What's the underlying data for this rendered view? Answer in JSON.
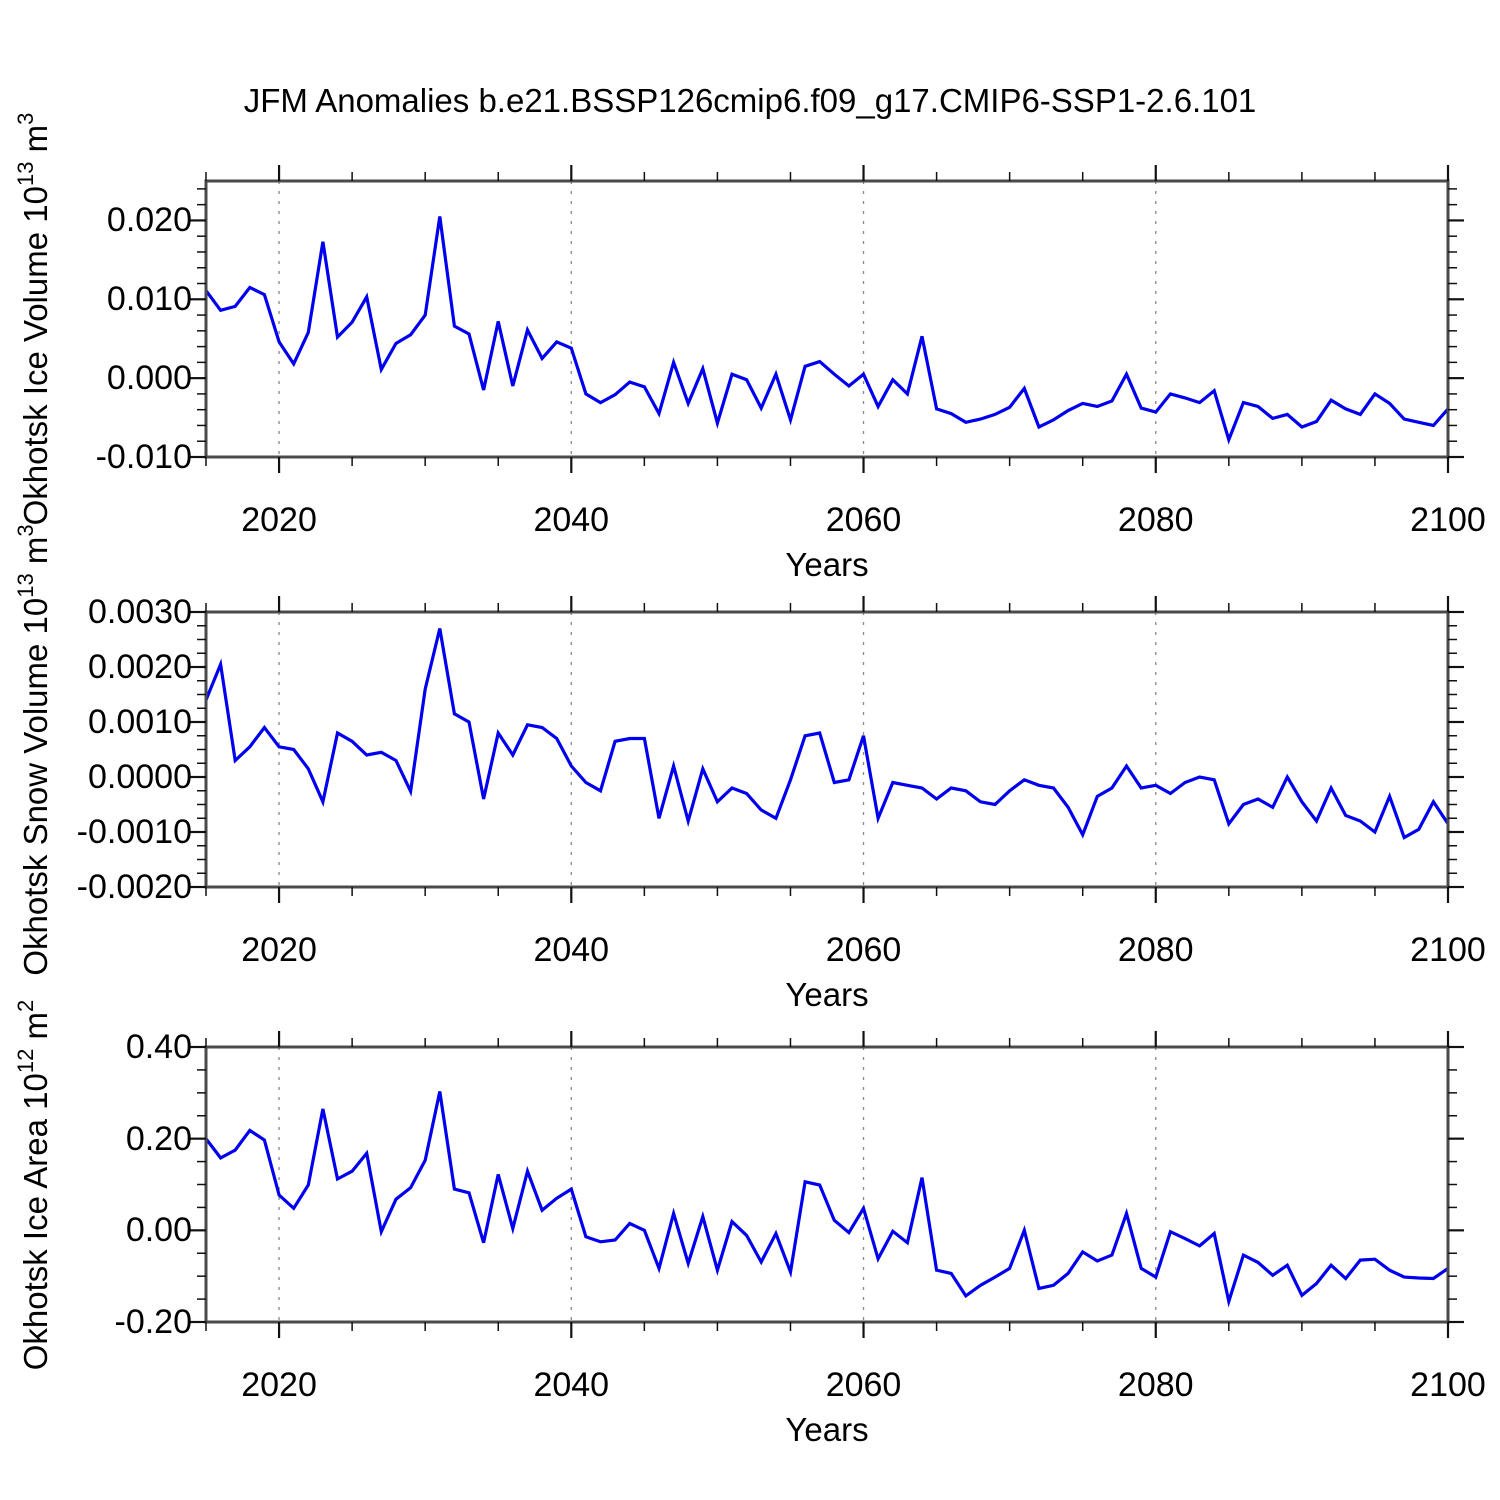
{
  "title": "JFM Anomalies b.e21.BSSP126cmip6.f09_g17.CMIP6-SSP1-2.6.101",
  "colors": {
    "line": "#0000ee",
    "axis_frame": "#4a4a4a",
    "ticks": "#111111",
    "gridline": "#888888",
    "text": "#000000",
    "background": "#ffffff"
  },
  "chart_data": [
    {
      "type": "line",
      "panel": "okhotsk-ice-volume",
      "ylabel": {
        "text": "Okhotsk Ice Volume",
        "base": "10",
        "exponent": "13",
        "unit": "m",
        "unit_exponent": "3"
      },
      "xlabel": "Years",
      "xlim": [
        2015,
        2100
      ],
      "ylim": [
        -0.01,
        0.025
      ],
      "xticks": {
        "values": [
          2020,
          2040,
          2060,
          2080,
          2100
        ],
        "labels": [
          "2020",
          "2040",
          "2060",
          "2080",
          "2100"
        ]
      },
      "yticks": {
        "values": [
          -0.01,
          0.0,
          0.01,
          0.02
        ],
        "labels": [
          "-0.010",
          "0.000",
          "0.010",
          "0.020"
        ]
      },
      "xminor_step": 5,
      "yminor_step": 0.002,
      "gridlines": [
        2020,
        2040,
        2060,
        2080
      ],
      "grid_style": "dashed-vertical",
      "legend": "none",
      "x_start": 2015,
      "x_step": 1,
      "values": [
        0.0111,
        0.0086,
        0.0091,
        0.0115,
        0.0106,
        0.0046,
        0.0018,
        0.0058,
        0.0173,
        0.0052,
        0.0071,
        0.0103,
        0.0011,
        0.0044,
        0.0055,
        0.008,
        0.0205,
        0.0066,
        0.0056,
        -0.0015,
        0.0072,
        -0.001,
        0.0061,
        0.0025,
        0.0046,
        0.0038,
        -0.002,
        -0.0031,
        -0.0021,
        -0.0005,
        -0.0011,
        -0.0045,
        0.002,
        -0.0032,
        0.0012,
        -0.0057,
        0.0005,
        -0.0002,
        -0.0038,
        0.0005,
        -0.0053,
        0.0015,
        0.0021,
        0.0005,
        -0.001,
        0.0005,
        -0.0036,
        -0.0002,
        -0.002,
        0.0053,
        -0.0039,
        -0.0045,
        -0.0056,
        -0.0052,
        -0.0046,
        -0.0037,
        -0.0013,
        -0.0062,
        -0.0053,
        -0.0041,
        -0.0032,
        -0.0036,
        -0.0029,
        0.0005,
        -0.0038,
        -0.0043,
        -0.002,
        -0.0025,
        -0.0031,
        -0.0016,
        -0.0078,
        -0.0031,
        -0.0036,
        -0.0051,
        -0.0046,
        -0.0062,
        -0.0055,
        -0.0028,
        -0.0039,
        -0.0046,
        -0.002,
        -0.0032,
        -0.0052,
        -0.0056,
        -0.006,
        -0.0039
      ]
    },
    {
      "type": "line",
      "panel": "okhotsk-snow-volume",
      "ylabel": {
        "text": "Okhotsk Snow Volume",
        "base": "10",
        "exponent": "13",
        "unit": "m",
        "unit_exponent": "3"
      },
      "xlabel": "Years",
      "xlim": [
        2015,
        2100
      ],
      "ylim": [
        -0.002,
        0.003
      ],
      "xticks": {
        "values": [
          2020,
          2040,
          2060,
          2080,
          2100
        ],
        "labels": [
          "2020",
          "2040",
          "2060",
          "2080",
          "2100"
        ]
      },
      "yticks": {
        "values": [
          -0.002,
          -0.001,
          0.0,
          0.001,
          0.002,
          0.003
        ],
        "labels": [
          "-0.0020",
          "-0.0010",
          "0.0000",
          "0.0010",
          "0.0020",
          "0.0030"
        ]
      },
      "xminor_step": 5,
      "yminor_step": 0.00025,
      "gridlines": [
        2020,
        2040,
        2060,
        2080
      ],
      "grid_style": "dashed-vertical",
      "legend": "none",
      "x_start": 2015,
      "x_step": 1,
      "values": [
        0.0014,
        0.00205,
        0.0003,
        0.00055,
        0.0009,
        0.00055,
        0.0005,
        0.00015,
        -0.00045,
        0.0008,
        0.00065,
        0.0004,
        0.00045,
        0.0003,
        -0.00026,
        0.0016,
        0.0027,
        0.00115,
        0.001,
        -0.0004,
        0.0008,
        0.0004,
        0.00095,
        0.0009,
        0.0007,
        0.0002,
        -0.0001,
        -0.00025,
        0.00065,
        0.0007,
        0.0007,
        -0.00075,
        0.0002,
        -0.0008,
        0.00015,
        -0.00045,
        -0.0002,
        -0.0003,
        -0.0006,
        -0.00075,
        -5e-05,
        0.00075,
        0.0008,
        -0.0001,
        -5e-05,
        0.00075,
        -0.00075,
        -0.0001,
        -0.00015,
        -0.0002,
        -0.0004,
        -0.0002,
        -0.00025,
        -0.00045,
        -0.0005,
        -0.00025,
        -5e-05,
        -0.00015,
        -0.0002,
        -0.00055,
        -0.00105,
        -0.00035,
        -0.0002,
        0.0002,
        -0.0002,
        -0.00015,
        -0.0003,
        -0.0001,
        0.0,
        -5e-05,
        -0.00085,
        -0.0005,
        -0.0004,
        -0.00055,
        0.0,
        -0.00045,
        -0.0008,
        -0.0002,
        -0.0007,
        -0.0008,
        -0.001,
        -0.00035,
        -0.0011,
        -0.00095,
        -0.00045,
        -0.00085
      ]
    },
    {
      "type": "line",
      "panel": "okhotsk-ice-area",
      "ylabel": {
        "text": "Okhotsk Ice Area",
        "base": "10",
        "exponent": "12",
        "unit": "m",
        "unit_exponent": "2"
      },
      "xlabel": "Years",
      "xlim": [
        2015,
        2100
      ],
      "ylim": [
        -0.2,
        0.4
      ],
      "xticks": {
        "values": [
          2020,
          2040,
          2060,
          2080,
          2100
        ],
        "labels": [
          "2020",
          "2040",
          "2060",
          "2080",
          "2100"
        ]
      },
      "yticks": {
        "values": [
          -0.2,
          0.0,
          0.2,
          0.4
        ],
        "labels": [
          "-0.20",
          "0.00",
          "0.20",
          "0.40"
        ]
      },
      "xminor_step": 5,
      "yminor_step": 0.05,
      "gridlines": [
        2020,
        2040,
        2060,
        2080
      ],
      "grid_style": "dashed-vertical",
      "legend": "none",
      "x_start": 2015,
      "x_step": 1,
      "values": [
        0.2,
        0.158,
        0.175,
        0.218,
        0.197,
        0.077,
        0.048,
        0.099,
        0.265,
        0.112,
        0.129,
        0.168,
        -0.003,
        0.068,
        0.093,
        0.153,
        0.303,
        0.09,
        0.082,
        -0.027,
        0.122,
        0.004,
        0.129,
        0.044,
        0.07,
        0.09,
        -0.014,
        -0.025,
        -0.021,
        0.015,
        0.0,
        -0.083,
        0.037,
        -0.072,
        0.03,
        -0.087,
        0.019,
        -0.011,
        -0.069,
        -0.007,
        -0.091,
        0.106,
        0.099,
        0.022,
        -0.005,
        0.048,
        -0.062,
        -0.002,
        -0.027,
        0.115,
        -0.087,
        -0.094,
        -0.143,
        -0.12,
        -0.102,
        -0.083,
        0.0,
        -0.127,
        -0.12,
        -0.094,
        -0.047,
        -0.067,
        -0.054,
        0.037,
        -0.083,
        -0.102,
        -0.003,
        -0.018,
        -0.034,
        -0.007,
        -0.155,
        -0.054,
        -0.07,
        -0.098,
        -0.076,
        -0.142,
        -0.116,
        -0.076,
        -0.105,
        -0.065,
        -0.063,
        -0.087,
        -0.102,
        -0.104,
        -0.105,
        -0.083
      ]
    }
  ]
}
